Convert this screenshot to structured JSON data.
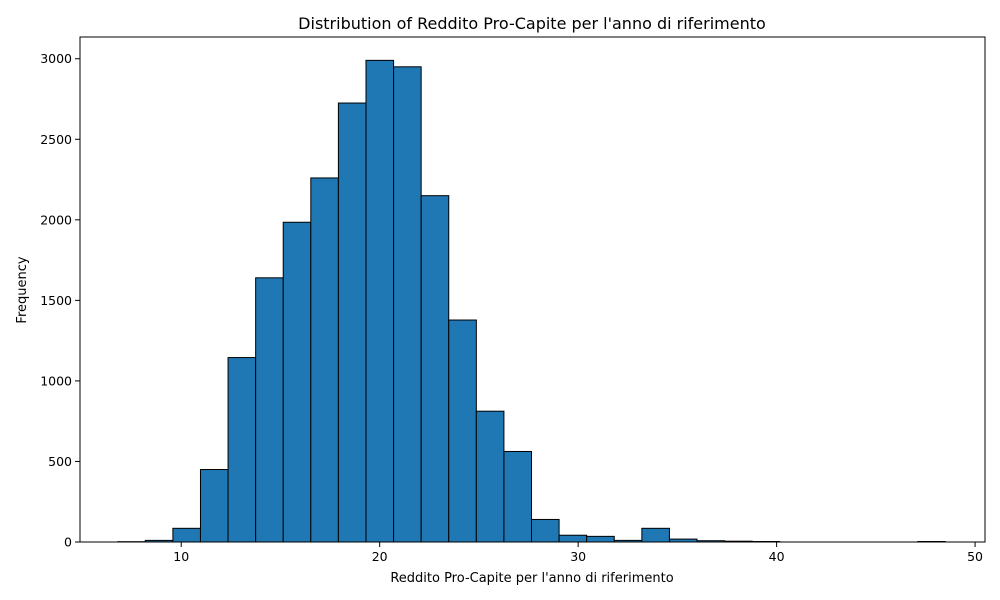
{
  "chart_data": {
    "type": "bar",
    "title": "Distribution of Reddito Pro-Capite per l'anno di riferimento",
    "xlabel": "Reddito Pro-Capite per l'anno di riferimento",
    "ylabel": "Frequency",
    "xlim": [
      4.9,
      50.5
    ],
    "ylim": [
      0,
      3135
    ],
    "xticks": [
      10,
      20,
      30,
      40,
      50
    ],
    "yticks": [
      0,
      500,
      1000,
      1500,
      2000,
      2500,
      3000
    ],
    "bin_start": 6.8,
    "bin_width": 1.39,
    "values": [
      2,
      10,
      85,
      450,
      1145,
      1640,
      1985,
      2260,
      2725,
      2990,
      2950,
      2150,
      1378,
      812,
      562,
      140,
      42,
      35,
      10,
      85,
      18,
      8,
      5,
      3,
      0,
      0,
      0,
      0,
      0,
      3
    ],
    "bar_color": "#1f77b4",
    "edge_color": "#000000",
    "grid": false
  }
}
